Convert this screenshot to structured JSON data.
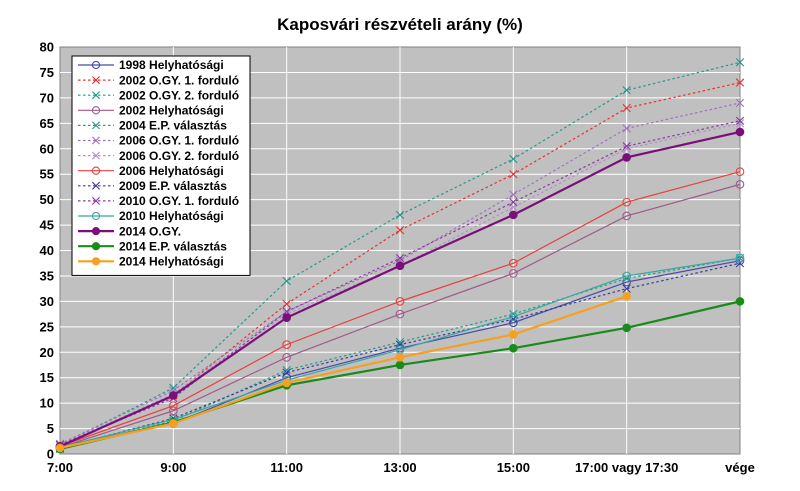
{
  "chart_data": {
    "type": "line",
    "title": "Kaposvári részvételi arány (%)",
    "xlabel": "",
    "ylabel": "",
    "categories": [
      "7:00",
      "9:00",
      "11:00",
      "13:00",
      "15:00",
      "17:00 vagy 17:30",
      "vége"
    ],
    "ylim": [
      0,
      80
    ],
    "yticks": [
      0,
      5,
      10,
      15,
      20,
      25,
      30,
      35,
      40,
      45,
      50,
      55,
      60,
      65,
      70,
      75,
      80
    ],
    "grid": true,
    "plot_background": "#c0c0c0",
    "legend_position": "top-left",
    "series": [
      {
        "name": "1998 Helyhatósági",
        "values": [
          1.5,
          6.0,
          15.0,
          20.8,
          25.8,
          33.8,
          38.0
        ],
        "color": "#4a4aa8",
        "marker": "circle-open",
        "dash": "solid",
        "width": 1.2
      },
      {
        "name": "2002 O.GY. 1. forduló",
        "values": [
          1.8,
          11.5,
          29.5,
          44.0,
          55.0,
          68.0,
          73.0
        ],
        "color": "#e83030",
        "marker": "x",
        "dash": "dotted",
        "width": 1.2
      },
      {
        "name": "2002 O.GY. 2. forduló",
        "values": [
          1.7,
          13.0,
          34.0,
          47.0,
          58.0,
          71.5,
          77.0
        ],
        "color": "#209a8a",
        "marker": "x",
        "dash": "dotted",
        "width": 1.2
      },
      {
        "name": "2002 Helyhatósági",
        "values": [
          1.3,
          8.5,
          19.0,
          27.5,
          35.5,
          46.8,
          53.0
        ],
        "color": "#a05a8a",
        "marker": "circle-open",
        "dash": "solid",
        "width": 1.2
      },
      {
        "name": "2004 E.P. választás",
        "values": [
          1.0,
          6.5,
          16.5,
          22.0,
          27.5,
          34.5,
          38.5
        ],
        "color": "#2a9a8a",
        "marker": "x",
        "dash": "dotted",
        "width": 1.2
      },
      {
        "name": "2006 O.GY. 1. forduló",
        "values": [
          2.0,
          12.5,
          28.0,
          38.0,
          51.0,
          64.0,
          69.0
        ],
        "color": "#a070c0",
        "marker": "x",
        "dash": "dotted",
        "width": 1.2
      },
      {
        "name": "2006 O.GY. 2. forduló",
        "values": [
          1.8,
          11.8,
          27.5,
          37.0,
          48.5,
          60.0,
          65.0
        ],
        "color": "#b090c8",
        "marker": "x",
        "dash": "dotted",
        "width": 1.2
      },
      {
        "name": "2006 Helyhatósági",
        "values": [
          1.5,
          9.5,
          21.5,
          30.0,
          37.5,
          49.5,
          55.5
        ],
        "color": "#e84040",
        "marker": "circle-open",
        "dash": "solid",
        "width": 1.2
      },
      {
        "name": "2009 E.P. választás",
        "values": [
          1.2,
          7.0,
          16.0,
          21.5,
          26.5,
          32.5,
          37.5
        ],
        "color": "#3a3aa0",
        "marker": "x",
        "dash": "dotted",
        "width": 1.2
      },
      {
        "name": "2010 O.GY. 1. forduló",
        "values": [
          1.8,
          11.0,
          28.0,
          38.5,
          49.5,
          60.5,
          65.5
        ],
        "color": "#8a3aa0",
        "marker": "x",
        "dash": "dotted",
        "width": 1.2
      },
      {
        "name": "2010 Helyhatósági",
        "values": [
          1.3,
          6.8,
          14.5,
          20.5,
          27.0,
          35.0,
          38.5
        ],
        "color": "#3aa8a0",
        "marker": "circle-open",
        "dash": "solid",
        "width": 1.2
      },
      {
        "name": "2014 O.GY.",
        "values": [
          1.5,
          11.5,
          26.8,
          37.0,
          47.0,
          58.3,
          63.3
        ],
        "color": "#7a0f7a",
        "marker": "circle-filled",
        "dash": "solid",
        "width": 2.2
      },
      {
        "name": "2014 E.P. választás",
        "values": [
          1.0,
          6.2,
          13.5,
          17.5,
          20.8,
          24.8,
          30.0
        ],
        "color": "#1a8a1a",
        "marker": "circle-filled",
        "dash": "solid",
        "width": 2.2
      },
      {
        "name": "2014 Helyhatósági",
        "values": [
          1.2,
          6.0,
          14.0,
          19.0,
          23.5,
          31.0,
          null
        ],
        "color": "#f5a020",
        "marker": "circle-filled",
        "dash": "solid",
        "width": 2.2
      }
    ]
  }
}
